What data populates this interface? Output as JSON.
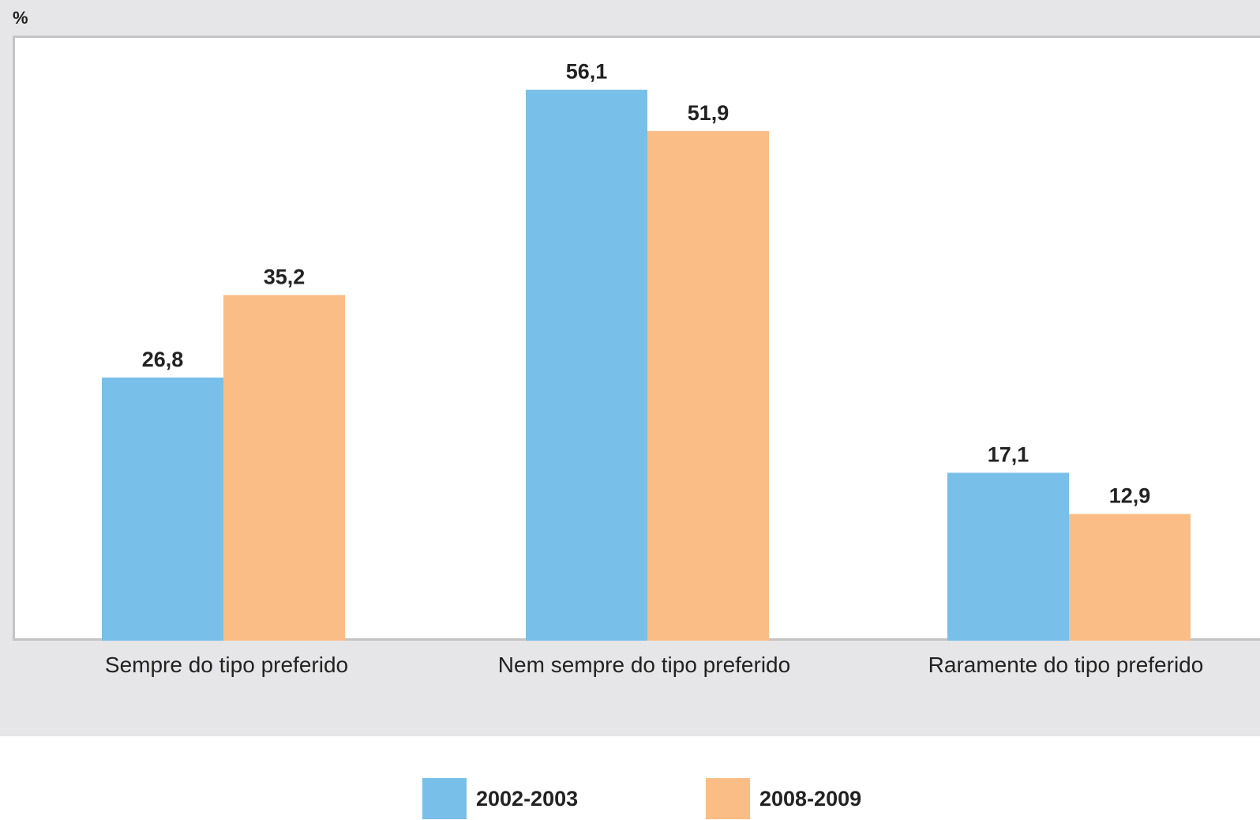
{
  "chart_data": {
    "type": "bar",
    "ylabel": "%",
    "categories": [
      "Sempre do tipo preferido",
      "Nem sempre do tipo preferido",
      "Raramente do tipo preferido"
    ],
    "series": [
      {
        "name": "2002-2003",
        "color": "#78bfe9",
        "values": [
          26.8,
          56.1,
          17.1
        ],
        "labels": [
          "26,8",
          "56,1",
          "17,1"
        ]
      },
      {
        "name": "2008-2009",
        "color": "#fbbd86",
        "values": [
          35.2,
          51.9,
          12.9
        ],
        "labels": [
          "35,2",
          "51,9",
          "12,9"
        ]
      }
    ],
    "ylim": [
      0,
      62
    ],
    "grid": false,
    "legend": "bottom-center"
  }
}
